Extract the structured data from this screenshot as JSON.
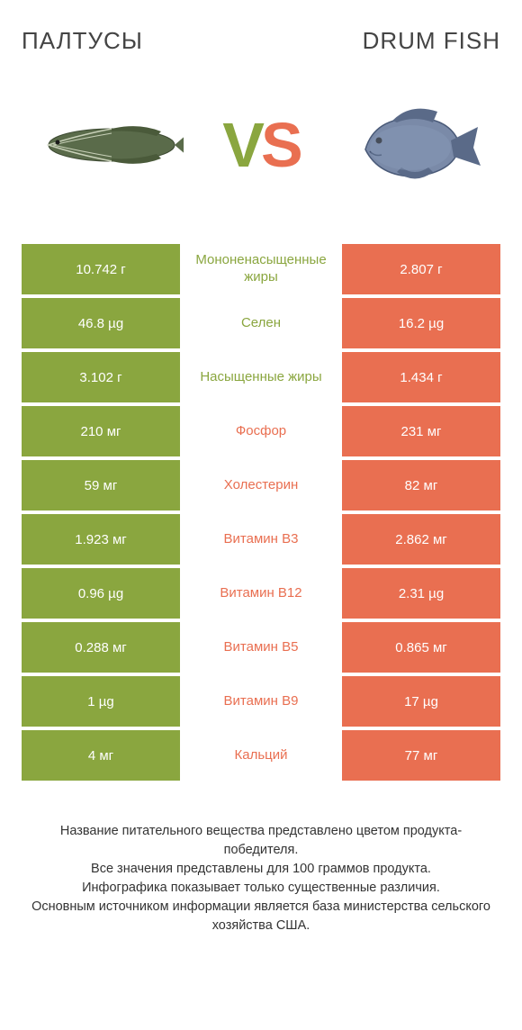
{
  "colors": {
    "green": "#8aa63f",
    "orange": "#e96f51",
    "white": "#ffffff",
    "text": "#333333"
  },
  "header": {
    "left_title": "ПАЛТУСЫ",
    "right_title": "DRUM FISH",
    "vs_v": "V",
    "vs_s": "S"
  },
  "rows": [
    {
      "left": "10.742 г",
      "label": "Мононенасыщенные жиры",
      "right": "2.807 г",
      "winner": "left"
    },
    {
      "left": "46.8 µg",
      "label": "Селен",
      "right": "16.2 µg",
      "winner": "left"
    },
    {
      "left": "3.102 г",
      "label": "Насыщенные жиры",
      "right": "1.434 г",
      "winner": "left"
    },
    {
      "left": "210 мг",
      "label": "Фосфор",
      "right": "231 мг",
      "winner": "right"
    },
    {
      "left": "59 мг",
      "label": "Холестерин",
      "right": "82 мг",
      "winner": "right"
    },
    {
      "left": "1.923 мг",
      "label": "Витамин B3",
      "right": "2.862 мг",
      "winner": "right"
    },
    {
      "left": "0.96 µg",
      "label": "Витамин B12",
      "right": "2.31 µg",
      "winner": "right"
    },
    {
      "left": "0.288 мг",
      "label": "Витамин B5",
      "right": "0.865 мг",
      "winner": "right"
    },
    {
      "left": "1 µg",
      "label": "Витамин B9",
      "right": "17 µg",
      "winner": "right"
    },
    {
      "left": "4 мг",
      "label": "Кальций",
      "right": "77 мг",
      "winner": "right"
    }
  ],
  "footer": {
    "line1": "Название питательного вещества представлено цветом продукта-победителя.",
    "line2": "Все значения представлены для 100 граммов продукта.",
    "line3": "Инфографика показывает только существенные различия.",
    "line4": "Основным источником информации является база министерства сельского хозяйства США."
  }
}
